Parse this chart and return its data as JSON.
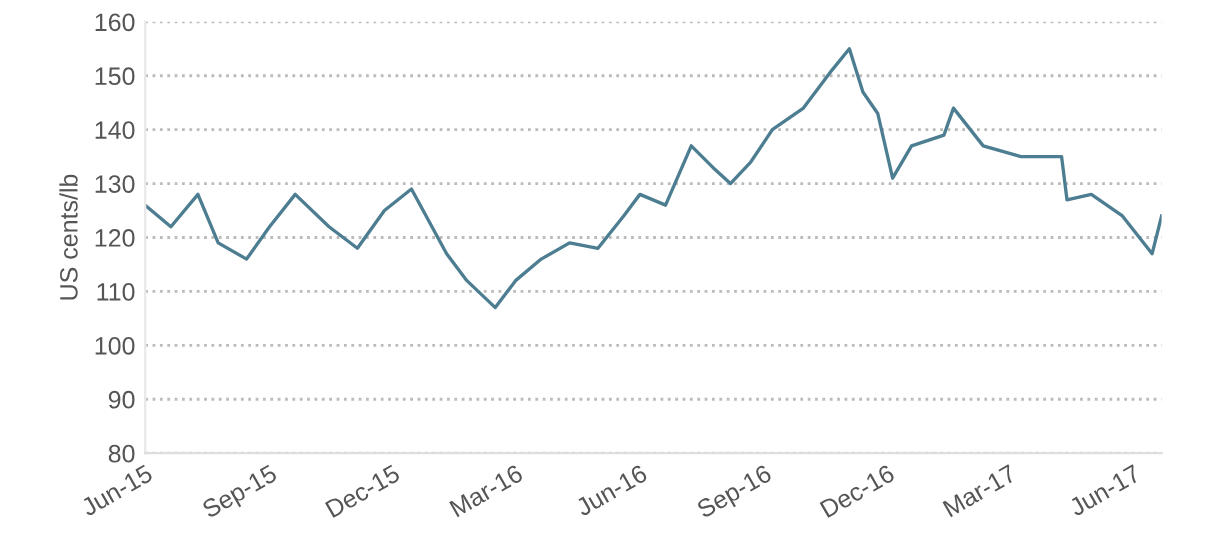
{
  "chart_data": {
    "type": "line",
    "ylabel": "US cents/lb",
    "x": [
      "2015-06-01",
      "2015-06-20",
      "2015-07-10",
      "2015-07-25",
      "2015-08-15",
      "2015-09-01",
      "2015-09-20",
      "2015-10-15",
      "2015-11-05",
      "2015-11-25",
      "2015-12-15",
      "2016-01-10",
      "2016-01-25",
      "2016-02-15",
      "2016-03-01",
      "2016-03-20",
      "2016-04-10",
      "2016-05-01",
      "2016-05-20",
      "2016-06-01",
      "2016-06-20",
      "2016-07-09",
      "2016-07-25",
      "2016-08-07",
      "2016-08-22",
      "2016-09-07",
      "2016-09-30",
      "2016-10-21",
      "2016-11-03",
      "2016-11-13",
      "2016-11-24",
      "2016-12-05",
      "2016-12-19",
      "2017-01-12",
      "2017-01-19",
      "2017-02-10",
      "2017-03-10",
      "2017-04-09",
      "2017-04-13",
      "2017-05-01",
      "2017-05-24",
      "2017-06-15",
      "2017-06-22"
    ],
    "series": [
      {
        "color": "#4d7d91",
        "values": [
          126,
          122,
          128,
          119,
          116,
          122,
          128,
          122,
          118,
          125,
          129,
          117,
          112,
          107,
          112,
          116,
          119,
          118,
          124,
          128,
          126,
          137,
          133,
          130,
          134,
          140,
          144,
          151,
          155,
          147,
          143,
          131,
          137,
          139,
          144,
          137,
          135,
          135,
          127,
          128,
          124,
          117,
          124
        ]
      }
    ],
    "xlim": [
      "2015-06-01",
      "2017-06-22"
    ],
    "xticks": [
      {
        "value": "2015-06-01",
        "label": "Jun-15"
      },
      {
        "value": "2015-09-01",
        "label": "Sep-15"
      },
      {
        "value": "2015-12-01",
        "label": "Dec-15"
      },
      {
        "value": "2016-03-01",
        "label": "Mar-16"
      },
      {
        "value": "2016-06-01",
        "label": "Jun-16"
      },
      {
        "value": "2016-09-01",
        "label": "Sep-16"
      },
      {
        "value": "2016-12-01",
        "label": "Dec-16"
      },
      {
        "value": "2017-03-01",
        "label": "Mar-17"
      },
      {
        "value": "2017-06-01",
        "label": "Jun-17"
      }
    ],
    "ylim": [
      80,
      160
    ],
    "yticks": [
      80,
      90,
      100,
      110,
      120,
      130,
      140,
      150,
      160
    ],
    "grid": "y",
    "legend": false,
    "marker": "none",
    "line_style": "solid"
  }
}
